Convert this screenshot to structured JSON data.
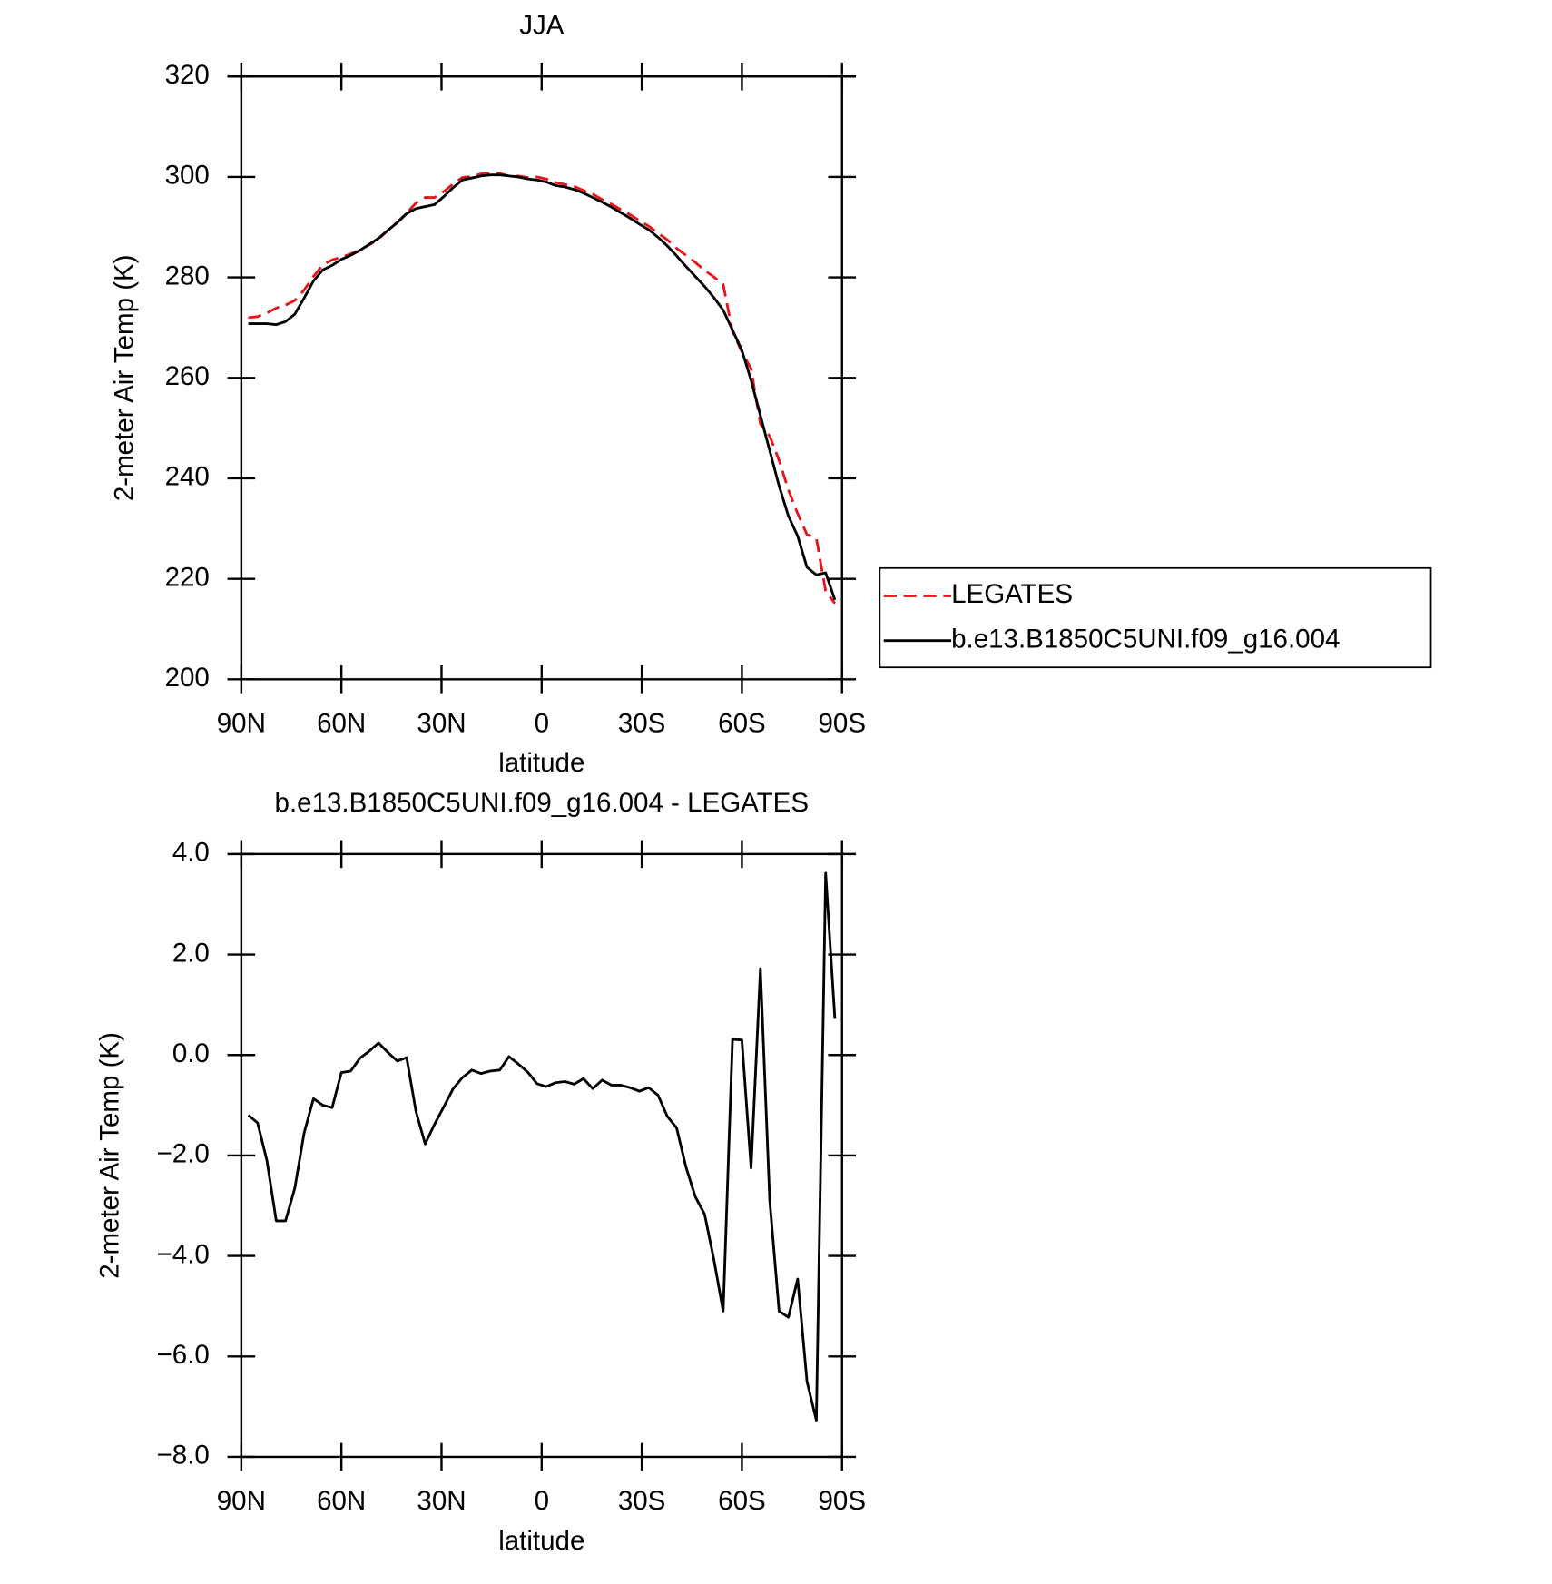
{
  "chart_data": [
    {
      "type": "line",
      "title": "JJA",
      "xlabel": "latitude",
      "ylabel": "2-meter Air Temp (K)",
      "xlim": [
        90,
        -90
      ],
      "xticks": [
        {
          "value": 90,
          "label": "90N"
        },
        {
          "value": 60,
          "label": "60N"
        },
        {
          "value": 30,
          "label": "30N"
        },
        0,
        {
          "value": -30,
          "label": "30S"
        },
        {
          "value": -60,
          "label": "60S"
        },
        {
          "value": -90,
          "label": "90S"
        }
      ],
      "ylim": [
        200,
        320
      ],
      "yticks": [
        200,
        220,
        240,
        260,
        280,
        300,
        320
      ],
      "legend": "outside right",
      "x": [
        87.9,
        85.11,
        82.32,
        79.53,
        76.74,
        73.95,
        71.16,
        68.37,
        65.58,
        62.79,
        60.0,
        57.21,
        54.42,
        51.63,
        48.84,
        46.05,
        43.26,
        40.47,
        37.68,
        34.89,
        32.1,
        29.31,
        26.52,
        23.73,
        20.94,
        18.15,
        15.36,
        12.57,
        9.78,
        6.99,
        4.2,
        1.41,
        -1.38,
        -4.17,
        -6.96,
        -9.75,
        -12.54,
        -15.33,
        -18.12,
        -20.91,
        -23.7,
        -26.49,
        -29.28,
        -32.07,
        -34.86,
        -37.65,
        -40.44,
        -43.23,
        -46.02,
        -48.81,
        -51.6,
        -54.39,
        -57.18,
        -59.97,
        -62.76,
        -65.55,
        -68.34,
        -71.13,
        -73.92,
        -76.71,
        -79.5,
        -82.29,
        -85.08,
        -87.87
      ],
      "series": [
        {
          "name": "LEGATES",
          "color": "#e8141b",
          "dash": "dashed",
          "values": [
            272.0,
            272.2,
            272.9,
            273.9,
            274.5,
            275.4,
            277.5,
            280.2,
            282.5,
            283.5,
            284.0,
            284.7,
            285.5,
            286.5,
            287.6,
            289.4,
            291.0,
            292.8,
            294.8,
            295.9,
            295.9,
            297.1,
            298.6,
            299.9,
            300.1,
            300.6,
            300.7,
            300.7,
            300.2,
            300.2,
            299.9,
            300.0,
            299.6,
            298.9,
            298.5,
            298.1,
            297.3,
            296.6,
            295.5,
            294.6,
            293.5,
            292.5,
            291.3,
            290.2,
            288.8,
            287.5,
            285.8,
            284.4,
            283.0,
            281.4,
            280.1,
            278.6,
            269.2,
            265.2,
            261.8,
            250.8,
            248.4,
            243.6,
            237.7,
            233.0,
            228.8,
            228.1,
            217.6,
            215.1
          ]
        },
        {
          "name": "b.e13.B1850C5UNI.f09_g16.004",
          "color": "#000000",
          "dash": "solid",
          "values": [
            270.8,
            270.8,
            270.8,
            270.6,
            271.2,
            272.7,
            275.9,
            279.3,
            281.5,
            282.4,
            283.6,
            284.4,
            285.4,
            286.6,
            287.8,
            289.4,
            290.9,
            292.7,
            293.7,
            294.1,
            294.5,
            296.1,
            297.9,
            299.4,
            299.8,
            300.2,
            300.4,
            300.4,
            300.2,
            300.0,
            299.6,
            299.4,
            299.0,
            298.3,
            298.0,
            297.5,
            296.8,
            295.9,
            295.0,
            294.0,
            292.9,
            291.8,
            290.6,
            289.5,
            288.0,
            286.3,
            284.3,
            282.2,
            280.2,
            278.2,
            276.0,
            273.5,
            269.5,
            265.5,
            259.5,
            252.5,
            245.5,
            238.5,
            232.5,
            228.5,
            222.3,
            220.8,
            221.2,
            215.8
          ]
        }
      ]
    },
    {
      "type": "line",
      "title": "b.e13.B1850C5UNI.f09_g16.004 - LEGATES",
      "xlabel": "latitude",
      "ylabel": "2-meter Air Temp (K)",
      "xlim": [
        90,
        -90
      ],
      "xticks": [
        {
          "value": 90,
          "label": "90N"
        },
        {
          "value": 60,
          "label": "60N"
        },
        {
          "value": 30,
          "label": "30N"
        },
        0,
        {
          "value": -30,
          "label": "30S"
        },
        {
          "value": -60,
          "label": "60S"
        },
        {
          "value": -90,
          "label": "90S"
        }
      ],
      "ylim": [
        -8,
        4
      ],
      "yticks": [
        {
          "value": -8,
          "label": "−8.0"
        },
        {
          "value": -6,
          "label": "−6.0"
        },
        {
          "value": -4,
          "label": "−4.0"
        },
        {
          "value": -2,
          "label": "−2.0"
        },
        {
          "value": 0,
          "label": "0.0"
        },
        {
          "value": 2,
          "label": "2.0"
        },
        {
          "value": 4,
          "label": "4.0"
        }
      ],
      "x": [
        87.9,
        85.11,
        82.32,
        79.53,
        76.74,
        73.95,
        71.16,
        68.37,
        65.58,
        62.79,
        60.0,
        57.21,
        54.42,
        51.63,
        48.84,
        46.05,
        43.26,
        40.47,
        37.68,
        34.89,
        32.1,
        29.31,
        26.52,
        23.73,
        20.94,
        18.15,
        15.36,
        12.57,
        9.78,
        6.99,
        4.2,
        1.41,
        -1.38,
        -4.17,
        -6.96,
        -9.75,
        -12.54,
        -15.33,
        -18.12,
        -20.91,
        -23.7,
        -26.49,
        -29.28,
        -32.07,
        -34.86,
        -37.65,
        -40.44,
        -43.23,
        -46.02,
        -48.81,
        -51.6,
        -54.39,
        -57.18,
        -59.97,
        -62.76,
        -65.55,
        -68.34,
        -71.13,
        -73.92,
        -76.71,
        -79.5,
        -82.29,
        -85.08,
        -87.87
      ],
      "color": "#000000",
      "values": [
        -1.2,
        -1.35,
        -2.1,
        -3.3,
        -3.3,
        -2.65,
        -1.55,
        -0.87,
        -1.0,
        -1.05,
        -0.35,
        -0.32,
        -0.06,
        0.08,
        0.24,
        0.05,
        -0.12,
        -0.05,
        -1.12,
        -1.77,
        -1.38,
        -1.03,
        -0.67,
        -0.45,
        -0.3,
        -0.37,
        -0.32,
        -0.3,
        -0.03,
        -0.18,
        -0.34,
        -0.57,
        -0.63,
        -0.55,
        -0.53,
        -0.58,
        -0.47,
        -0.67,
        -0.5,
        -0.6,
        -0.6,
        -0.65,
        -0.72,
        -0.65,
        -0.8,
        -1.22,
        -1.45,
        -2.23,
        -2.82,
        -3.17,
        -4.07,
        -5.1,
        0.31,
        0.3,
        -2.25,
        1.72,
        -2.9,
        -5.1,
        -5.22,
        -4.46,
        -6.5,
        -7.27,
        3.62,
        0.72
      ]
    }
  ]
}
